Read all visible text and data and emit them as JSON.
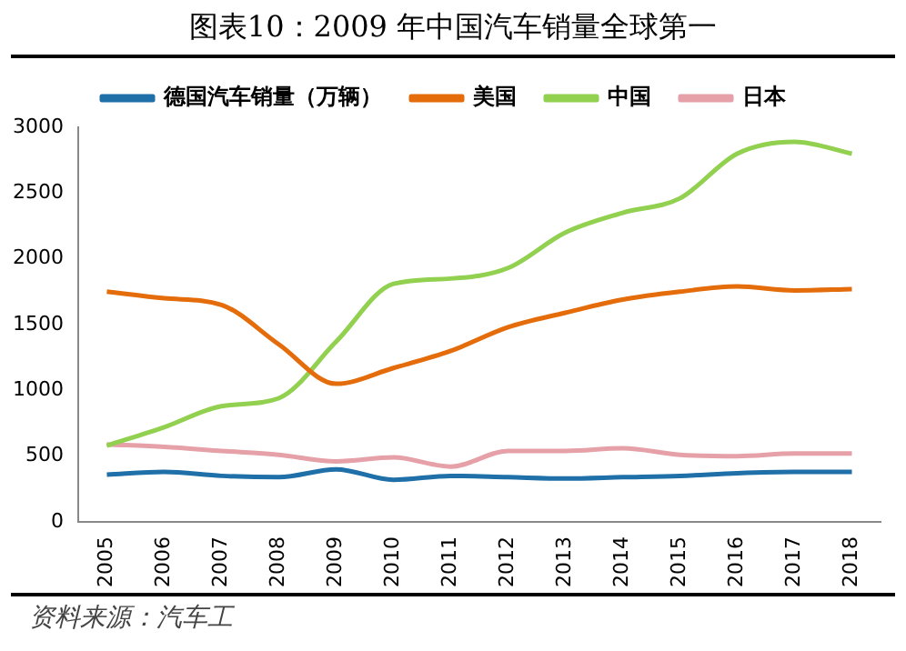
{
  "chart_data": {
    "type": "line",
    "title": "图表10：2009 年中国汽车销量全球第一",
    "annotations": [
      "资料来源：汽车工"
    ],
    "categories": [
      "2005",
      "2006",
      "2007",
      "2008",
      "2009",
      "2010",
      "2011",
      "2012",
      "2013",
      "2014",
      "2015",
      "2016",
      "2017",
      "2018"
    ],
    "series": [
      {
        "name": "德国汽车销量（万辆）",
        "color": "#1f6fa8",
        "values": [
          360,
          380,
          350,
          340,
          400,
          320,
          350,
          340,
          330,
          340,
          350,
          370,
          380,
          380
        ]
      },
      {
        "name": "美国",
        "color": "#e46c0a",
        "values": [
          1750,
          1700,
          1650,
          1350,
          1050,
          1170,
          1300,
          1480,
          1590,
          1690,
          1750,
          1790,
          1760,
          1770
        ]
      },
      {
        "name": "中国",
        "color": "#92d050",
        "values": [
          580,
          720,
          880,
          940,
          1370,
          1810,
          1850,
          1930,
          2200,
          2350,
          2460,
          2800,
          2890,
          2800
        ]
      },
      {
        "name": "日本",
        "color": "#e6a0a8",
        "values": [
          590,
          570,
          540,
          510,
          460,
          490,
          420,
          540,
          540,
          560,
          510,
          500,
          520,
          520
        ]
      }
    ],
    "ylim": [
      0,
      3000
    ],
    "yticks": [
      0,
      500,
      1000,
      1500,
      2000,
      2500,
      3000
    ],
    "grid": false,
    "legend": "top",
    "marker": "none",
    "line_style": "solid"
  }
}
